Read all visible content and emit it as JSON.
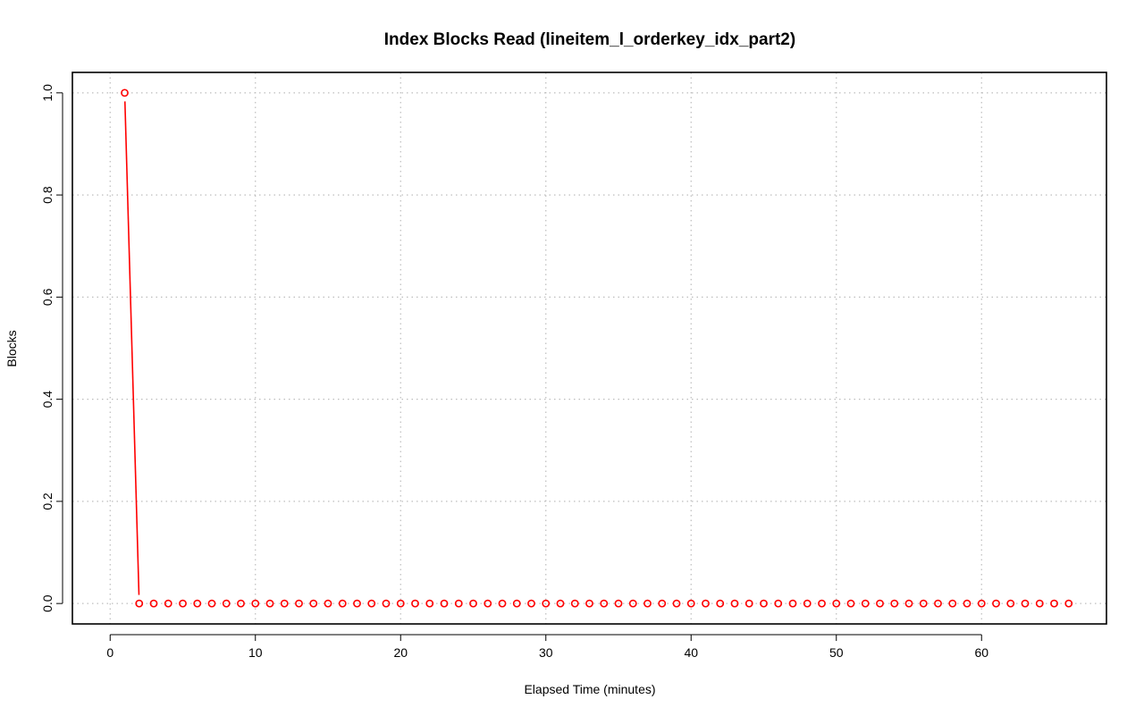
{
  "chart_data": {
    "type": "line",
    "title": "Index Blocks Read (lineitem_l_orderkey_idx_part2)",
    "xlabel": "Elapsed Time (minutes)",
    "ylabel": "Blocks",
    "xlim": [
      -2.6,
      68.6
    ],
    "ylim": [
      -0.04,
      1.04
    ],
    "x_ticks": [
      0,
      10,
      20,
      30,
      40,
      50,
      60
    ],
    "y_ticks": [
      0.0,
      0.2,
      0.4,
      0.6,
      0.8,
      1.0
    ],
    "y_tick_labels": [
      "0.0",
      "0.2",
      "0.4",
      "0.6",
      "0.8",
      "1.0"
    ],
    "grid": true,
    "series_color": "#ff0000",
    "marker": "open-circle",
    "series": [
      {
        "x": [
          1,
          2,
          3,
          4,
          5,
          6,
          7,
          8,
          9,
          10,
          11,
          12,
          13,
          14,
          15,
          16,
          17,
          18,
          19,
          20,
          21,
          22,
          23,
          24,
          25,
          26,
          27,
          28,
          29,
          30,
          31,
          32,
          33,
          34,
          35,
          36,
          37,
          38,
          39,
          40,
          41,
          42,
          43,
          44,
          45,
          46,
          47,
          48,
          49,
          50,
          51,
          52,
          53,
          54,
          55,
          56,
          57,
          58,
          59,
          60,
          61,
          62,
          63,
          64,
          65,
          66
        ],
        "values": [
          1,
          0,
          0,
          0,
          0,
          0,
          0,
          0,
          0,
          0,
          0,
          0,
          0,
          0,
          0,
          0,
          0,
          0,
          0,
          0,
          0,
          0,
          0,
          0,
          0,
          0,
          0,
          0,
          0,
          0,
          0,
          0,
          0,
          0,
          0,
          0,
          0,
          0,
          0,
          0,
          0,
          0,
          0,
          0,
          0,
          0,
          0,
          0,
          0,
          0,
          0,
          0,
          0,
          0,
          0,
          0,
          0,
          0,
          0,
          0,
          0,
          0,
          0,
          0,
          0,
          0
        ]
      }
    ]
  }
}
